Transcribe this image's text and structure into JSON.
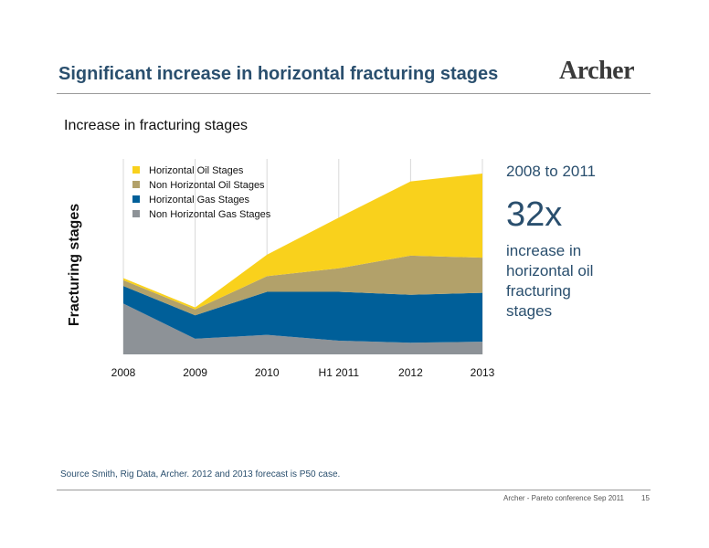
{
  "header": {
    "title": "Significant increase in horizontal fracturing stages",
    "logo": "Archer"
  },
  "chart_title": "Increase in fracturing stages",
  "callout": {
    "years": "2008 to 2011",
    "multiplier": "32x",
    "description": "increase in horizontal oil fracturing stages"
  },
  "source": "Source Smith, Rig Data, Archer. 2012 and 2013 forecast is P50 case.",
  "footer": {
    "text": "Archer - Pareto conference Sep 2011",
    "page": "15"
  },
  "colors": {
    "horizontal_oil": "#f9d11c",
    "non_horizontal_oil": "#b2a16a",
    "horizontal_gas": "#005f99",
    "non_horizontal_gas": "#8d9297"
  },
  "chart_data": {
    "type": "area",
    "stacked": true,
    "title": "Increase in fracturing stages",
    "xlabel": "",
    "ylabel": "Fracturing stages",
    "categories": [
      "2008",
      "2009",
      "2010",
      "H1 2011",
      "2012",
      "2013"
    ],
    "ylim": [
      0,
      100
    ],
    "grid": true,
    "legend_position": "top-left",
    "series": [
      {
        "name": "Non Horizontal Gas Stages",
        "color": "#8d9297",
        "values": [
          26,
          8,
          10,
          7,
          6,
          6.5
        ]
      },
      {
        "name": "Horizontal Gas Stages",
        "color": "#005f99",
        "values": [
          9,
          12,
          22,
          25,
          24.5,
          25
        ]
      },
      {
        "name": "Non Horizontal Oil Stages",
        "color": "#b2a16a",
        "values": [
          3,
          3,
          8,
          12,
          20,
          18
        ]
      },
      {
        "name": "Horizontal Oil Stages",
        "color": "#f9d11c",
        "values": [
          1,
          1,
          11,
          26,
          38,
          43
        ]
      }
    ]
  }
}
